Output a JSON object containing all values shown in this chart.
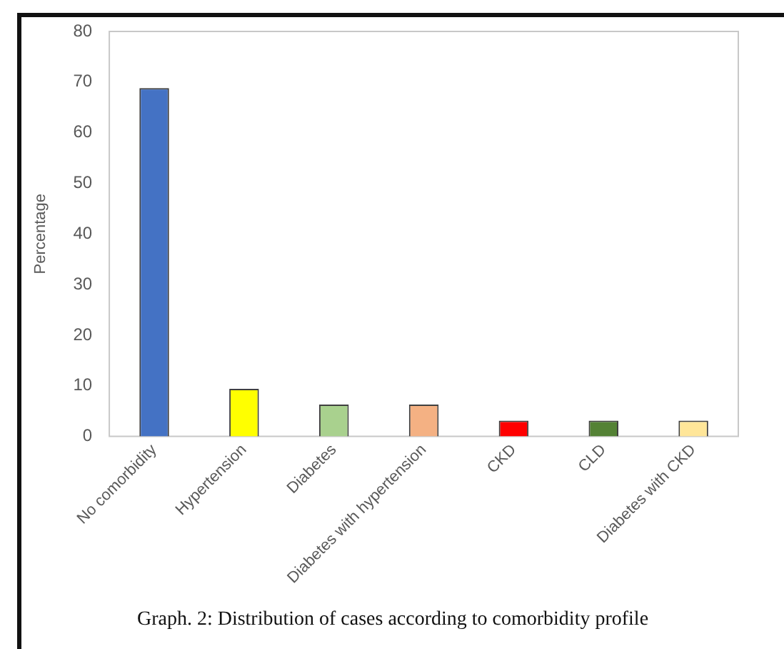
{
  "chart_data": {
    "type": "bar",
    "ylabel": "Percentage",
    "categories": [
      "No comorbidity",
      "Hypertension",
      "Diabetes",
      "Diabetes with hypertension",
      "CKD",
      "CLD",
      "Diabetes with CKD"
    ],
    "values": [
      68.8,
      9.4,
      6.3,
      6.3,
      3.1,
      3.1,
      3.1
    ],
    "colors": [
      "#4472c4",
      "#ffff00",
      "#a9d18e",
      "#f4b183",
      "#ff0000",
      "#548235",
      "#ffe699"
    ],
    "ylim": [
      0,
      80
    ],
    "yticks": [
      0,
      10,
      20,
      30,
      40,
      50,
      60,
      70,
      80
    ],
    "grid": false,
    "legend": false,
    "annotations": [
      "Graph. 2: Distribution of cases according to comorbidity profile"
    ]
  }
}
